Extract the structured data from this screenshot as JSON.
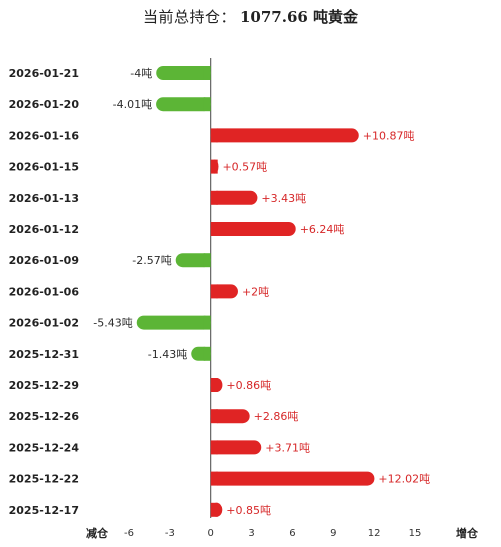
{
  "header": {
    "label": "当前总持仓：",
    "value": "1077.66 吨黄金"
  },
  "colors": {
    "positive": "#e02424",
    "negative": "#5cb536"
  },
  "chart_data": {
    "type": "bar",
    "orientation": "horizontal",
    "unit": "吨",
    "categories": [
      "2026-01-21",
      "2026-01-20",
      "2026-01-16",
      "2026-01-15",
      "2026-01-13",
      "2026-01-12",
      "2026-01-09",
      "2026-01-06",
      "2026-01-02",
      "2025-12-31",
      "2025-12-29",
      "2025-12-26",
      "2025-12-24",
      "2025-12-22",
      "2025-12-17"
    ],
    "values": [
      -4,
      -4.01,
      10.87,
      0.57,
      3.43,
      6.24,
      -2.57,
      2,
      -5.43,
      -1.43,
      0.86,
      2.86,
      3.71,
      12.02,
      0.85
    ],
    "labels": [
      "-4吨",
      "-4.01吨",
      "+10.87吨",
      "+0.57吨",
      "+3.43吨",
      "+6.24吨",
      "-2.57吨",
      "+2吨",
      "-5.43吨",
      "-1.43吨",
      "+0.86吨",
      "+2.86吨",
      "+3.71吨",
      "+12.02吨",
      "+0.85吨"
    ],
    "xlim": [
      -6,
      15
    ],
    "xticks": [
      "-6",
      "-3",
      "0",
      "3",
      "6",
      "9",
      "12",
      "15"
    ],
    "xtick_values": [
      -6,
      -3,
      0,
      3,
      6,
      9,
      12,
      15
    ],
    "left_label": "减仓",
    "right_label": "增仓"
  }
}
